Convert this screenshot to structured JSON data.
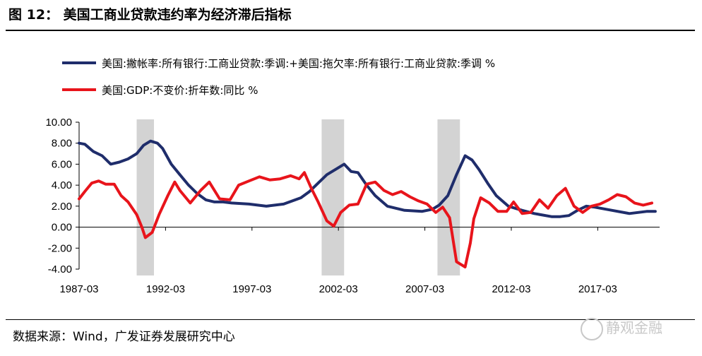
{
  "header": {
    "title": "图 12： 美国工商业贷款违约率为经济滞后指标"
  },
  "footer": {
    "source": "数据来源：Wind，广发证券发展研究中心",
    "watermark": "静观金融"
  },
  "colors": {
    "default_rate": "#1f2d6b",
    "gdp": "#e8141b",
    "recession": "#d3d3d3"
  },
  "chart_data": {
    "type": "line",
    "title": "美国工商业贷款违约率为经济滞后指标",
    "xlabel": "",
    "ylabel": "",
    "ylim": [
      -4,
      10
    ],
    "xlim": [
      1987.17,
      2020.75
    ],
    "yticks": [
      "10.00",
      "8.00",
      "6.00",
      "4.00",
      "2.00",
      "0.00",
      "-2.00",
      "-4.00"
    ],
    "ytick_values": [
      10,
      8,
      6,
      4,
      2,
      0,
      -2,
      -4
    ],
    "xticks": [
      "1987-03",
      "1992-03",
      "1997-03",
      "2002-03",
      "2007-03",
      "2012-03",
      "2017-03"
    ],
    "xtick_values": [
      1987.17,
      1992.17,
      1997.17,
      2002.17,
      2007.17,
      2012.17,
      2017.17
    ],
    "legend_position": "top-left",
    "recessions": [
      [
        1990.5,
        1991.5
      ],
      [
        2001.2,
        2002.5
      ],
      [
        2007.9,
        2009.2
      ]
    ],
    "series": [
      {
        "name": "美国:撇帐率:所有银行:工商业贷款:季调:+美国:拖欠率:所有银行:工商业贷款:季调 %",
        "color": "#1f2d6b",
        "points": [
          [
            1987.17,
            8.0
          ],
          [
            1987.5,
            7.9
          ],
          [
            1988.0,
            7.2
          ],
          [
            1988.5,
            6.8
          ],
          [
            1989.0,
            6.0
          ],
          [
            1989.5,
            6.2
          ],
          [
            1990.0,
            6.5
          ],
          [
            1990.5,
            7.0
          ],
          [
            1990.9,
            7.8
          ],
          [
            1991.3,
            8.2
          ],
          [
            1991.7,
            8.0
          ],
          [
            1992.0,
            7.5
          ],
          [
            1992.5,
            6.0
          ],
          [
            1993.0,
            5.0
          ],
          [
            1993.5,
            4.0
          ],
          [
            1994.0,
            3.2
          ],
          [
            1994.5,
            2.6
          ],
          [
            1995.0,
            2.4
          ],
          [
            1995.5,
            2.4
          ],
          [
            1996.0,
            2.3
          ],
          [
            1997.0,
            2.2
          ],
          [
            1998.0,
            2.0
          ],
          [
            1999.0,
            2.2
          ],
          [
            2000.0,
            2.8
          ],
          [
            2000.5,
            3.4
          ],
          [
            2001.0,
            4.2
          ],
          [
            2001.5,
            5.0
          ],
          [
            2002.0,
            5.5
          ],
          [
            2002.5,
            6.0
          ],
          [
            2002.9,
            5.3
          ],
          [
            2003.3,
            5.2
          ],
          [
            2003.8,
            4.0
          ],
          [
            2004.3,
            3.0
          ],
          [
            2005.0,
            2.0
          ],
          [
            2006.0,
            1.6
          ],
          [
            2007.0,
            1.5
          ],
          [
            2007.6,
            1.7
          ],
          [
            2008.0,
            2.1
          ],
          [
            2008.5,
            3.0
          ],
          [
            2009.0,
            5.0
          ],
          [
            2009.5,
            6.8
          ],
          [
            2009.9,
            6.4
          ],
          [
            2010.3,
            5.5
          ],
          [
            2010.8,
            4.2
          ],
          [
            2011.3,
            3.0
          ],
          [
            2012.0,
            2.0
          ],
          [
            2012.8,
            1.6
          ],
          [
            2013.5,
            1.3
          ],
          [
            2014.5,
            1.0
          ],
          [
            2015.0,
            1.0
          ],
          [
            2015.5,
            1.1
          ],
          [
            2016.0,
            1.6
          ],
          [
            2016.5,
            2.0
          ],
          [
            2017.0,
            1.9
          ],
          [
            2018.0,
            1.6
          ],
          [
            2019.0,
            1.3
          ],
          [
            2019.5,
            1.4
          ],
          [
            2020.0,
            1.5
          ],
          [
            2020.5,
            1.5
          ]
        ]
      },
      {
        "name": "美国:GDP:不变价:折年数:同比 %",
        "color": "#e8141b",
        "points": [
          [
            1987.17,
            2.7
          ],
          [
            1987.5,
            3.4
          ],
          [
            1987.9,
            4.2
          ],
          [
            1988.3,
            4.4
          ],
          [
            1988.7,
            4.1
          ],
          [
            1989.2,
            4.1
          ],
          [
            1989.6,
            3.0
          ],
          [
            1990.0,
            2.4
          ],
          [
            1990.5,
            1.2
          ],
          [
            1990.8,
            0.0
          ],
          [
            1991.0,
            -1.0
          ],
          [
            1991.4,
            -0.5
          ],
          [
            1991.8,
            1.2
          ],
          [
            1992.3,
            3.0
          ],
          [
            1992.7,
            4.3
          ],
          [
            1993.0,
            3.5
          ],
          [
            1993.6,
            2.3
          ],
          [
            1994.2,
            3.5
          ],
          [
            1994.7,
            4.3
          ],
          [
            1995.3,
            2.7
          ],
          [
            1995.9,
            2.6
          ],
          [
            1996.4,
            4.0
          ],
          [
            1997.0,
            4.4
          ],
          [
            1997.6,
            4.8
          ],
          [
            1998.2,
            4.5
          ],
          [
            1998.8,
            4.6
          ],
          [
            1999.4,
            4.9
          ],
          [
            1999.9,
            4.6
          ],
          [
            2000.2,
            5.2
          ],
          [
            2000.6,
            3.7
          ],
          [
            2001.0,
            2.4
          ],
          [
            2001.5,
            0.6
          ],
          [
            2001.9,
            0.1
          ],
          [
            2002.3,
            1.4
          ],
          [
            2002.8,
            2.1
          ],
          [
            2003.3,
            2.2
          ],
          [
            2003.8,
            4.1
          ],
          [
            2004.3,
            4.3
          ],
          [
            2004.8,
            3.5
          ],
          [
            2005.3,
            3.1
          ],
          [
            2005.8,
            3.4
          ],
          [
            2006.3,
            2.9
          ],
          [
            2006.8,
            2.5
          ],
          [
            2007.3,
            2.2
          ],
          [
            2007.8,
            1.4
          ],
          [
            2008.2,
            1.9
          ],
          [
            2008.6,
            0.9
          ],
          [
            2009.0,
            -3.3
          ],
          [
            2009.5,
            -3.8
          ],
          [
            2009.8,
            -1.5
          ],
          [
            2010.0,
            0.8
          ],
          [
            2010.4,
            2.8
          ],
          [
            2010.9,
            2.3
          ],
          [
            2011.4,
            1.5
          ],
          [
            2011.9,
            1.5
          ],
          [
            2012.3,
            2.4
          ],
          [
            2012.8,
            1.3
          ],
          [
            2013.3,
            1.4
          ],
          [
            2013.8,
            2.6
          ],
          [
            2014.3,
            1.8
          ],
          [
            2014.8,
            3.0
          ],
          [
            2015.3,
            3.7
          ],
          [
            2015.8,
            2.0
          ],
          [
            2016.3,
            1.4
          ],
          [
            2016.8,
            2.0
          ],
          [
            2017.3,
            2.2
          ],
          [
            2017.8,
            2.6
          ],
          [
            2018.3,
            3.1
          ],
          [
            2018.8,
            2.9
          ],
          [
            2019.3,
            2.3
          ],
          [
            2019.8,
            2.1
          ],
          [
            2020.3,
            2.3
          ]
        ]
      }
    ]
  }
}
